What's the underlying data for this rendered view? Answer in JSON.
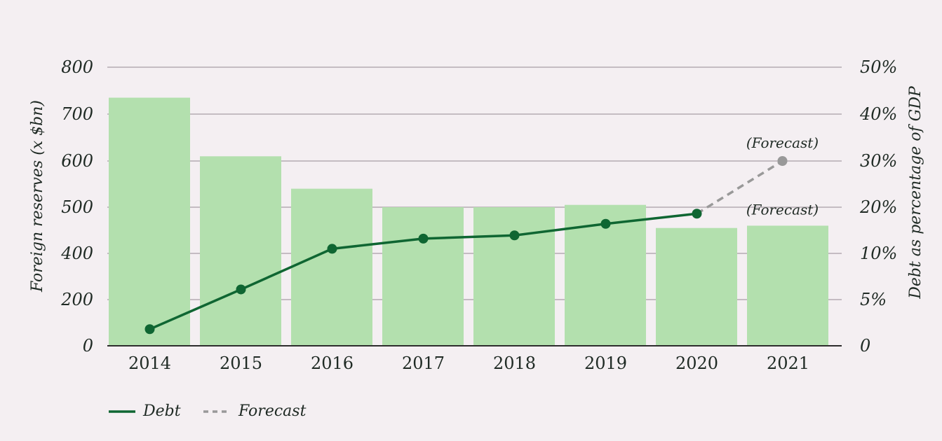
{
  "chart_data": {
    "type": "bar",
    "categories": [
      "2014",
      "2015",
      "2016",
      "2017",
      "2018",
      "2019",
      "2020",
      "2021"
    ],
    "y_left": {
      "label": "Foreign reserves (x $bn)",
      "ticks": [
        0,
        200,
        400,
        500,
        600,
        700,
        800
      ],
      "tick_labels": [
        "0",
        "200",
        "400",
        "500",
        "600",
        "700",
        "800"
      ]
    },
    "y_right": {
      "label": "Debt as percentage of GDP",
      "ticks": [
        0,
        5,
        10,
        20,
        30,
        40,
        50
      ],
      "tick_labels": [
        "0",
        "5%",
        "10%",
        "20%",
        "30%",
        "40%",
        "50%"
      ]
    },
    "bars": {
      "values": [
        735,
        610,
        540,
        500,
        500,
        505,
        455,
        460
      ],
      "forecast_label": "(Forecast)"
    },
    "debt_series": {
      "name": "Debt",
      "values": [
        1.8,
        6.1,
        11.0,
        13.2,
        13.9,
        16.4,
        18.6
      ]
    },
    "forecast_series": {
      "name": "Forecast",
      "from_category": "2020",
      "to_category": "2021",
      "values": [
        18.6,
        30.0
      ],
      "label": "(Forecast)"
    },
    "grid": true,
    "legend_position": "bottom-left",
    "colors": {
      "bar": "#b3e0ae",
      "debt_line": "#0f6632",
      "forecast_line": "#999999",
      "grid": "#b3acb1",
      "axis": "#2c2c2c",
      "background": "#f4eff2"
    }
  },
  "legend": {
    "items": [
      {
        "label": "Debt"
      },
      {
        "label": "Forecast"
      }
    ]
  }
}
